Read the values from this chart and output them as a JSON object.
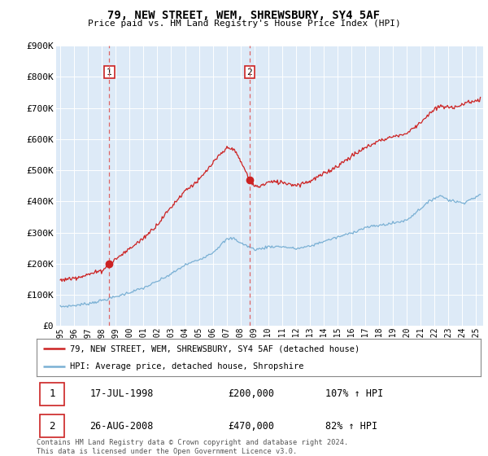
{
  "title": "79, NEW STREET, WEM, SHREWSBURY, SY4 5AF",
  "subtitle": "Price paid vs. HM Land Registry's House Price Index (HPI)",
  "ylim": [
    0,
    900000
  ],
  "yticks": [
    0,
    100000,
    200000,
    300000,
    400000,
    500000,
    600000,
    700000,
    800000,
    900000
  ],
  "ytick_labels": [
    "£0",
    "£100K",
    "£200K",
    "£300K",
    "£400K",
    "£500K",
    "£600K",
    "£700K",
    "£800K",
    "£900K"
  ],
  "hpi_color": "#7ab0d4",
  "price_color": "#cc2222",
  "dashed_color": "#dd6666",
  "transaction1": {
    "year": 1998.54,
    "price": 200000,
    "label": "1",
    "date": "17-JUL-1998",
    "amount": "£200,000",
    "hpi_pct": "107% ↑ HPI"
  },
  "transaction2": {
    "year": 2008.65,
    "price": 470000,
    "label": "2",
    "date": "26-AUG-2008",
    "amount": "£470,000",
    "hpi_pct": "82% ↑ HPI"
  },
  "legend_line1": "79, NEW STREET, WEM, SHREWSBURY, SY4 5AF (detached house)",
  "legend_line2": "HPI: Average price, detached house, Shropshire",
  "footer": "Contains HM Land Registry data © Crown copyright and database right 2024.\nThis data is licensed under the Open Government Licence v3.0.",
  "plot_bg": "#ddeaf7",
  "fig_bg": "#ffffff",
  "label_box_color": "#cc2222",
  "xlim_left": 1994.7,
  "xlim_right": 2025.5
}
